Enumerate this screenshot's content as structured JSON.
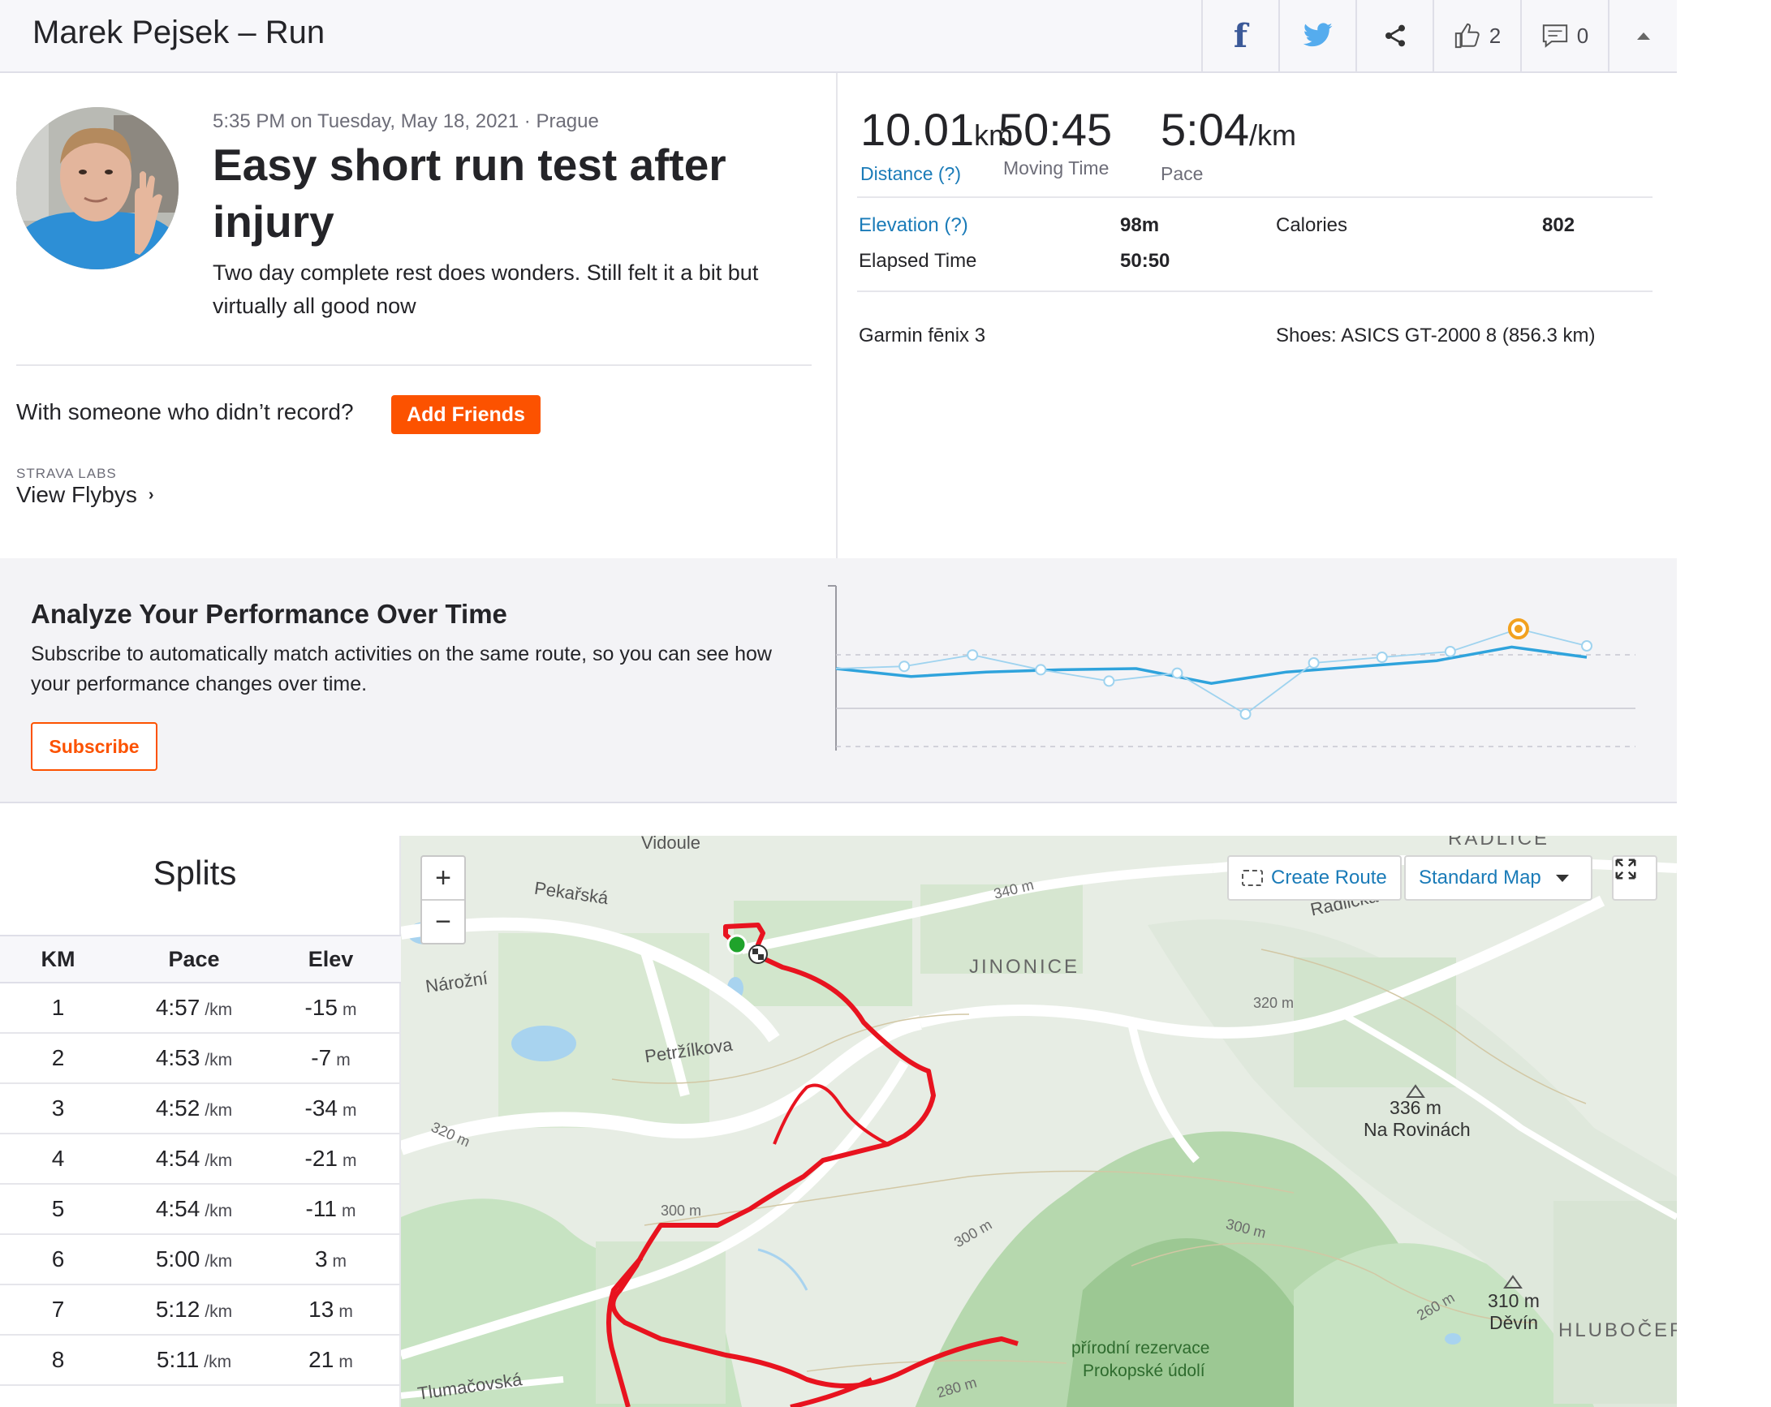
{
  "header": {
    "title": "Marek Pejsek – Run",
    "kudos_count": "2",
    "comments_count": "0"
  },
  "activity": {
    "meta": "5:35 PM on Tuesday, May 18, 2021 · Prague",
    "title": "Easy short run test after injury",
    "description": "Two day complete rest does wonders. Still felt it a bit but virtually all good now",
    "with_someone": "With someone who didn’t record?",
    "add_friends": "Add Friends",
    "labs_label": "STRAVA LABS",
    "flybys": "View Flybys"
  },
  "stats": {
    "distance": {
      "value": "10.01",
      "unit": "km",
      "label": "Distance (?)"
    },
    "moving_time": {
      "value": "50:45",
      "label": "Moving Time"
    },
    "pace": {
      "value": "5:04",
      "unit": "/km",
      "label": "Pace"
    },
    "elevation_label": "Elevation (?)",
    "elevation_value": "98m",
    "calories_label": "Calories",
    "calories_value": "802",
    "elapsed_label": "Elapsed Time",
    "elapsed_value": "50:50",
    "device": "Garmin fēnix 3",
    "shoes": "Shoes: ASICS GT-2000 8 (856.3 km)"
  },
  "analyze": {
    "title": "Analyze Your Performance Over Time",
    "description": "Subscribe to automatically match activities on the same route, so you can see how your performance changes over time.",
    "subscribe": "Subscribe"
  },
  "splits": {
    "title": "Splits",
    "headers": {
      "km": "KM",
      "pace": "Pace",
      "elev": "Elev"
    },
    "pace_unit": "/km",
    "elev_unit": "m",
    "rows": [
      {
        "km": "1",
        "pace": "4:57",
        "elev": "-15"
      },
      {
        "km": "2",
        "pace": "4:53",
        "elev": "-7"
      },
      {
        "km": "3",
        "pace": "4:52",
        "elev": "-34"
      },
      {
        "km": "4",
        "pace": "4:54",
        "elev": "-21"
      },
      {
        "km": "5",
        "pace": "4:54",
        "elev": "-11"
      },
      {
        "km": "6",
        "pace": "5:00",
        "elev": "3"
      },
      {
        "km": "7",
        "pace": "5:12",
        "elev": "13"
      },
      {
        "km": "8",
        "pace": "5:11",
        "elev": "21"
      }
    ]
  },
  "map": {
    "create_route": "Create Route",
    "map_type": "Standard Map",
    "zoom_in": "+",
    "zoom_out": "−",
    "labels": {
      "vidoule": "Vidoule",
      "radlice": "RADLICE",
      "pekarska": "Pekařská",
      "narozni": "Nárožní",
      "jinonice": "JINONICE",
      "radlicka": "Radlická",
      "petrzilkova": "Petržílkova",
      "tlumacovska": "Tlumačovská",
      "hluboce": "HLUBOČEP",
      "summit1_h": "336 m",
      "summit1_n": "Na Rovinách",
      "summit2_h": "310 m",
      "summit2_n": "Děvín",
      "reserve": "přírodní rezervace",
      "reserve2": "Prokopské údolí",
      "c340": "340 m",
      "c320a": "320 m",
      "c320b": "320 m",
      "c300a": "300 m",
      "c300b": "300 m",
      "c300c": "300 m",
      "c280": "280 m",
      "c260": "260 m"
    }
  },
  "colors": {
    "strava_orange": "#fc5200",
    "link_blue": "#1a7bb8",
    "route_red": "#e8131f",
    "chart_blue": "#2fa3dc",
    "highlight_orange": "#f2a11f"
  },
  "chart_data": {
    "type": "line",
    "series": [
      {
        "values": [
          40,
          33,
          37,
          39,
          40,
          27,
          37,
          42,
          47,
          59,
          50
        ]
      },
      {
        "values": [
          40,
          42,
          52,
          39,
          29,
          36,
          0,
          45,
          50,
          55,
          75,
          60
        ]
      }
    ],
    "highlight_point": {
      "series": 1,
      "index": 10
    }
  }
}
